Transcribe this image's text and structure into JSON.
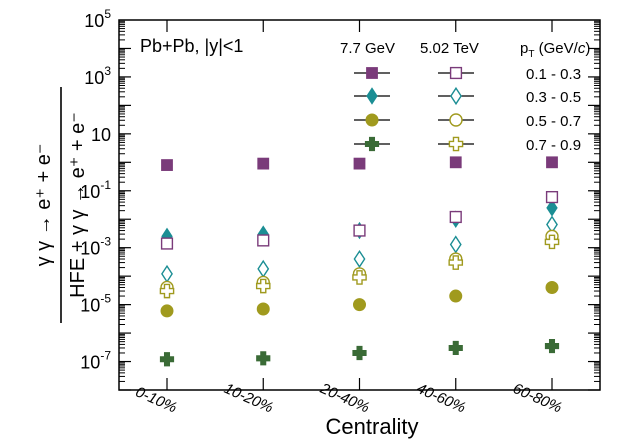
{
  "chart_data": {
    "type": "scatter",
    "yscale": "log",
    "ylim_exp": [
      -8,
      5
    ],
    "y_tick_labels": [
      {
        "base": "10",
        "exp": "5",
        "value_exp": 5
      },
      {
        "base": "10",
        "exp": "3",
        "value_exp": 3
      },
      {
        "base": "10",
        "exp": "",
        "value_exp": 1
      },
      {
        "base": "10",
        "exp": "-1",
        "value_exp": -1
      },
      {
        "base": "10",
        "exp": "-3",
        "value_exp": -3
      },
      {
        "base": "10",
        "exp": "-5",
        "value_exp": -5
      },
      {
        "base": "10",
        "exp": "-7",
        "value_exp": -7
      }
    ],
    "categories": [
      "0-10%",
      "10-20%",
      "20-40%",
      "40-60%",
      "60-80%"
    ],
    "xlabel": "Centrality",
    "ylabel_parts": {
      "num": "γ γ → e⁺ + e⁻",
      "den": "HFE + γ γ → e⁺ + e⁻"
    },
    "annotation": "Pb+Pb, |y|<1",
    "legend": {
      "col1_header": "7.7 GeV",
      "col2_header": "5.02 TeV",
      "pt_header_prefix": "p",
      "pt_header_sub": "T",
      "pt_header_suffix": " (GeV/",
      "pt_header_c": "c",
      "pt_header_close": ")",
      "rows": [
        "0.1 - 0.3",
        "0.3 - 0.5",
        "0.5 - 0.7",
        "0.7 - 0.9"
      ]
    },
    "series": [
      {
        "energy": "7.7 GeV",
        "pt": "0.1 - 0.3",
        "marker": "square",
        "filled": true,
        "color": "#7a3b7a",
        "values": [
          0.8,
          0.9,
          0.9,
          1.0,
          1.0
        ]
      },
      {
        "energy": "7.7 GeV",
        "pt": "0.3 - 0.5",
        "marker": "diamond",
        "filled": true,
        "color": "#1b8e94",
        "values": [
          0.0025,
          0.003,
          0.004,
          0.01,
          0.025
        ]
      },
      {
        "energy": "7.7 GeV",
        "pt": "0.5 - 0.7",
        "marker": "circle",
        "filled": true,
        "color": "#a09a1e",
        "values": [
          6e-06,
          7e-06,
          1e-05,
          2e-05,
          4e-05
        ]
      },
      {
        "energy": "7.7 GeV",
        "pt": "0.7 - 0.9",
        "marker": "cross",
        "filled": true,
        "color": "#3a6b36",
        "values": [
          1.2e-07,
          1.3e-07,
          2e-07,
          3e-07,
          3.5e-07
        ]
      },
      {
        "energy": "5.02 TeV",
        "pt": "0.1 - 0.3",
        "marker": "square",
        "filled": false,
        "color": "#7a3b7a",
        "values": [
          0.0014,
          0.0018,
          0.004,
          0.012,
          0.06
        ]
      },
      {
        "energy": "5.02 TeV",
        "pt": "0.3 - 0.5",
        "marker": "diamond",
        "filled": false,
        "color": "#1b8e94",
        "values": [
          0.00012,
          0.00018,
          0.0004,
          0.0013,
          0.0065
        ]
      },
      {
        "energy": "5.02 TeV",
        "pt": "0.5 - 0.7",
        "marker": "circle",
        "filled": false,
        "color": "#a09a1e",
        "values": [
          4e-05,
          6e-05,
          0.00012,
          0.0004,
          0.0025
        ]
      },
      {
        "energy": "5.02 TeV",
        "pt": "0.7 - 0.9",
        "marker": "cross",
        "filled": false,
        "color": "#a09a1e",
        "values": [
          3e-05,
          4.5e-05,
          9e-05,
          0.0003,
          0.0016
        ]
      }
    ]
  }
}
